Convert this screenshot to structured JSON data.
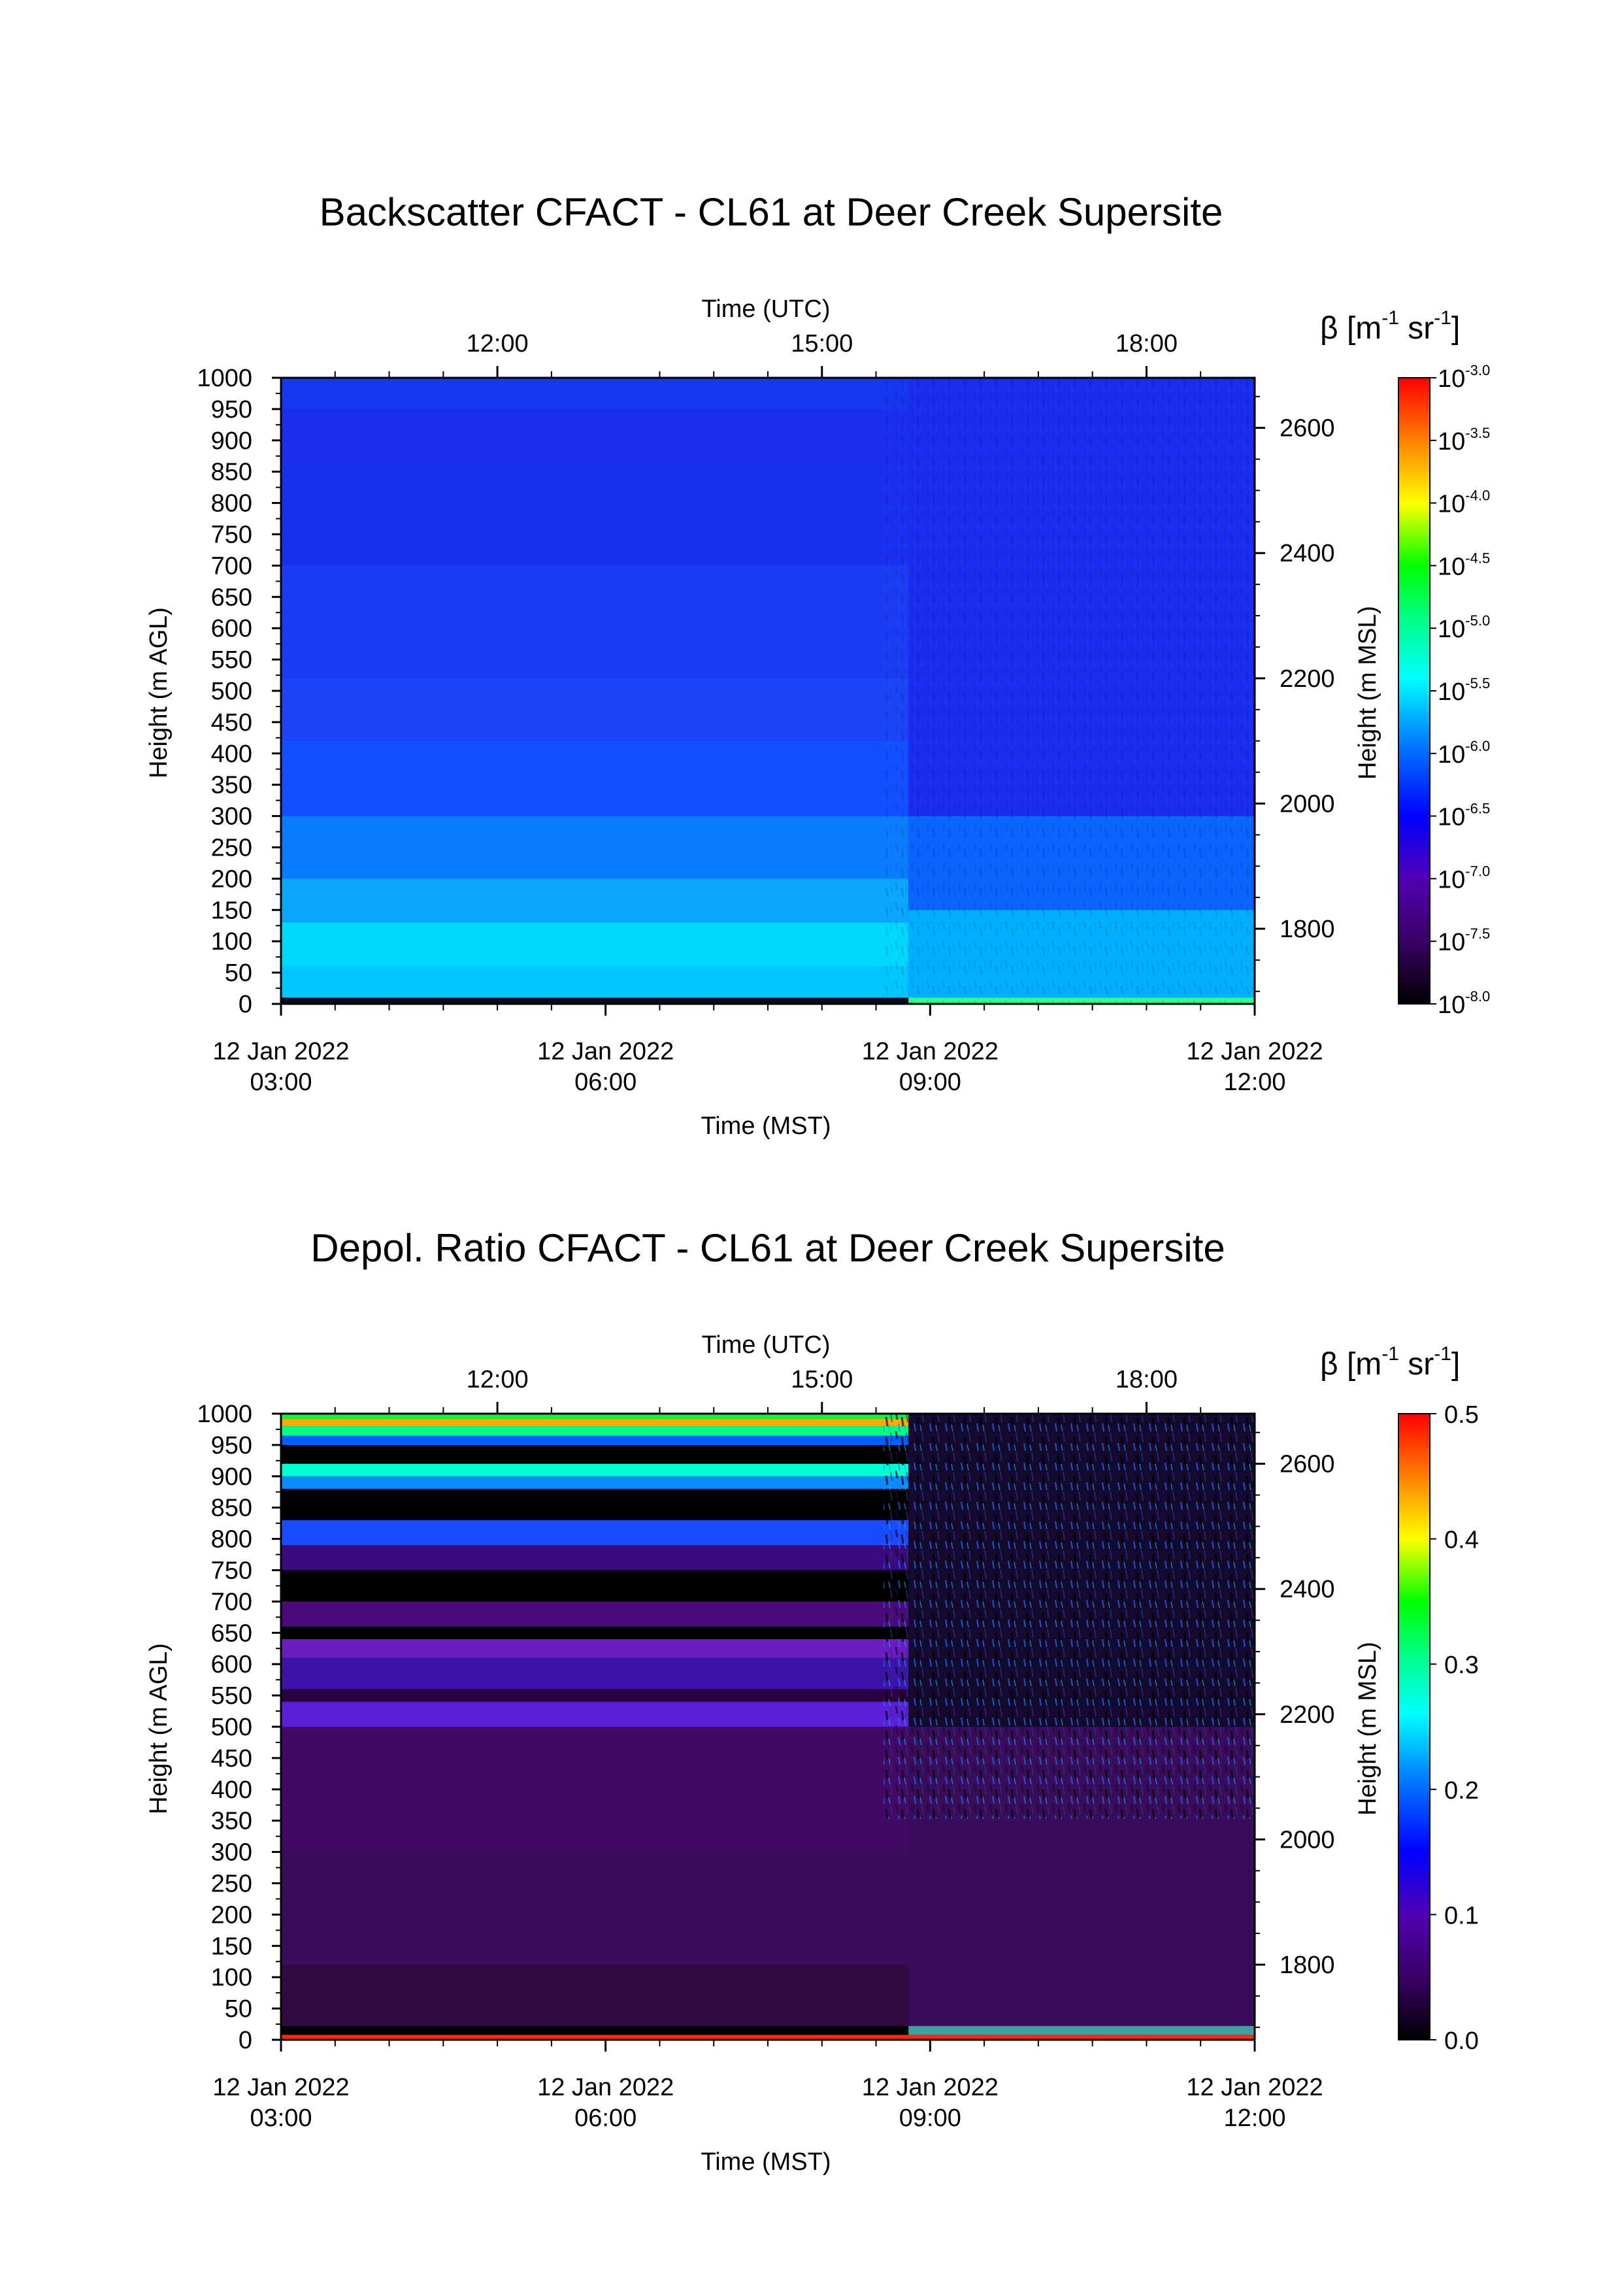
{
  "chart_data": [
    {
      "type": "heatmap",
      "title": "Backscatter CFACT - CL61 at Deer Creek Supersite",
      "xlabel": "Time (MST)",
      "x2label": "Time (UTC)",
      "ylabel": "Height (m AGL)",
      "y2label": "Height (m MSL)",
      "xlim": [
        "12 Jan 2022 03:00",
        "12 Jan 2022 12:00"
      ],
      "x_ticks": [
        {
          "line1": "12 Jan 2022",
          "line2": "03:00",
          "hour": 3
        },
        {
          "line1": "12 Jan 2022",
          "line2": "06:00",
          "hour": 6
        },
        {
          "line1": "12 Jan 2022",
          "line2": "09:00",
          "hour": 9
        },
        {
          "line1": "12 Jan 2022",
          "line2": "12:00",
          "hour": 12
        }
      ],
      "x2_ticks": [
        {
          "label": "12:00",
          "hour": 12
        },
        {
          "label": "15:00",
          "hour": 15
        },
        {
          "label": "18:00",
          "hour": 18
        }
      ],
      "ylim": [
        0,
        1000
      ],
      "y_ticks": [
        0,
        50,
        100,
        150,
        200,
        250,
        300,
        350,
        400,
        450,
        500,
        550,
        600,
        650,
        700,
        750,
        800,
        850,
        900,
        950,
        1000
      ],
      "y2_ticks": [
        1800,
        2000,
        2200,
        2400,
        2600
      ],
      "colorbar": {
        "label_base": "β [m",
        "label_exp1": "-1",
        "label_mid": " sr",
        "label_exp2": "-1",
        "label_end": "]",
        "scale": "log",
        "range": [
          -8.0,
          -3.0
        ],
        "ticks": [
          {
            "base": "10",
            "exp": "-3.0",
            "value": -3.0
          },
          {
            "base": "10",
            "exp": "-3.5",
            "value": -3.5
          },
          {
            "base": "10",
            "exp": "-4.0",
            "value": -4.0
          },
          {
            "base": "10",
            "exp": "-4.5",
            "value": -4.5
          },
          {
            "base": "10",
            "exp": "-5.0",
            "value": -5.0
          },
          {
            "base": "10",
            "exp": "-5.5",
            "value": -5.5
          },
          {
            "base": "10",
            "exp": "-6.0",
            "value": -6.0
          },
          {
            "base": "10",
            "exp": "-6.5",
            "value": -6.5
          },
          {
            "base": "10",
            "exp": "-7.0",
            "value": -7.0
          },
          {
            "base": "10",
            "exp": "-7.5",
            "value": -7.5
          },
          {
            "base": "10",
            "exp": "-8.0",
            "value": -8.0
          }
        ]
      },
      "data_start_hour": 8.8
    },
    {
      "type": "heatmap",
      "title": "Depol. Ratio CFACT - CL61 at Deer Creek Supersite",
      "xlabel": "Time (MST)",
      "x2label": "Time (UTC)",
      "ylabel": "Height (m AGL)",
      "y2label": "Height (m MSL)",
      "xlim": [
        "12 Jan 2022 03:00",
        "12 Jan 2022 12:00"
      ],
      "x_ticks": [
        {
          "line1": "12 Jan 2022",
          "line2": "03:00",
          "hour": 3
        },
        {
          "line1": "12 Jan 2022",
          "line2": "06:00",
          "hour": 6
        },
        {
          "line1": "12 Jan 2022",
          "line2": "09:00",
          "hour": 9
        },
        {
          "line1": "12 Jan 2022",
          "line2": "12:00",
          "hour": 12
        }
      ],
      "x2_ticks": [
        {
          "label": "12:00",
          "hour": 12
        },
        {
          "label": "15:00",
          "hour": 15
        },
        {
          "label": "18:00",
          "hour": 18
        }
      ],
      "ylim": [
        0,
        1000
      ],
      "y_ticks": [
        0,
        50,
        100,
        150,
        200,
        250,
        300,
        350,
        400,
        450,
        500,
        550,
        600,
        650,
        700,
        750,
        800,
        850,
        900,
        950,
        1000
      ],
      "y2_ticks": [
        1800,
        2000,
        2200,
        2400,
        2600
      ],
      "colorbar": {
        "label_base": "β [m",
        "label_exp1": "-1",
        "label_mid": " sr",
        "label_exp2": "-1",
        "label_end": "]",
        "scale": "linear",
        "range": [
          0.0,
          0.5
        ],
        "ticks": [
          {
            "base": "0.5",
            "exp": "",
            "value": 0.5
          },
          {
            "base": "0.4",
            "exp": "",
            "value": 0.4
          },
          {
            "base": "0.3",
            "exp": "",
            "value": 0.3
          },
          {
            "base": "0.2",
            "exp": "",
            "value": 0.2
          },
          {
            "base": "0.1",
            "exp": "",
            "value": 0.1
          },
          {
            "base": "0.0",
            "exp": "",
            "value": 0.0
          }
        ]
      },
      "data_start_hour": 8.8
    }
  ],
  "colors": {
    "rainbow_stops": [
      "#000000",
      "#3a0064",
      "#0000ff",
      "#00a0ff",
      "#00ffff",
      "#00ff80",
      "#00ff00",
      "#ffff00",
      "#ff8000",
      "#ff0000"
    ]
  }
}
